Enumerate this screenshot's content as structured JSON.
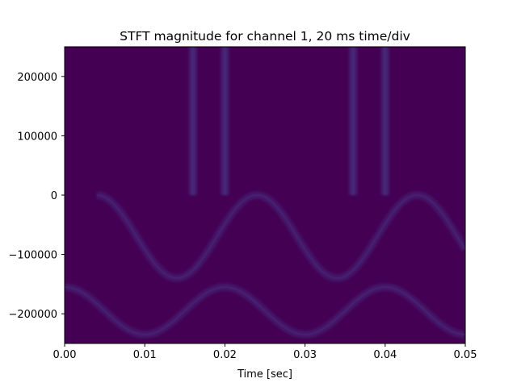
{
  "chart_data": {
    "type": "heatmap",
    "title": "STFT magnitude for channel 1, 20 ms time/div",
    "xlabel": "Time [sec]",
    "ylabel": "",
    "xlim": [
      0.0,
      0.05
    ],
    "ylim": [
      -250000,
      250000
    ],
    "x_ticks": [
      0.0,
      0.01,
      0.02,
      0.03,
      0.04,
      0.05
    ],
    "x_tick_labels": [
      "0.00",
      "0.01",
      "0.02",
      "0.03",
      "0.04",
      "0.05"
    ],
    "y_ticks": [
      200000,
      100000,
      0,
      -100000,
      -200000
    ],
    "y_tick_labels": [
      "200000",
      "100000",
      "0",
      "−100000",
      "−200000"
    ],
    "grid": false,
    "colormap": "viridis",
    "background_color": "#440154",
    "feature_color": "#472c7a",
    "vertical_bands": [
      {
        "x": 0.016,
        "f_min": 0,
        "f_max": 250000
      },
      {
        "x": 0.02,
        "f_min": 0,
        "f_max": 250000
      },
      {
        "x": 0.036,
        "f_min": 0,
        "f_max": 250000
      },
      {
        "x": 0.04,
        "f_min": 0,
        "f_max": 250000
      }
    ],
    "sinusoid_traces": [
      {
        "center": -70000,
        "amplitude": 70000,
        "period": 0.02,
        "phase_x": 0.004,
        "x_range": [
          0.004,
          0.05
        ]
      },
      {
        "center": -195000,
        "amplitude": 40000,
        "period": 0.02,
        "phase_x": 0.0,
        "x_range": [
          0.0,
          0.05
        ]
      }
    ]
  }
}
